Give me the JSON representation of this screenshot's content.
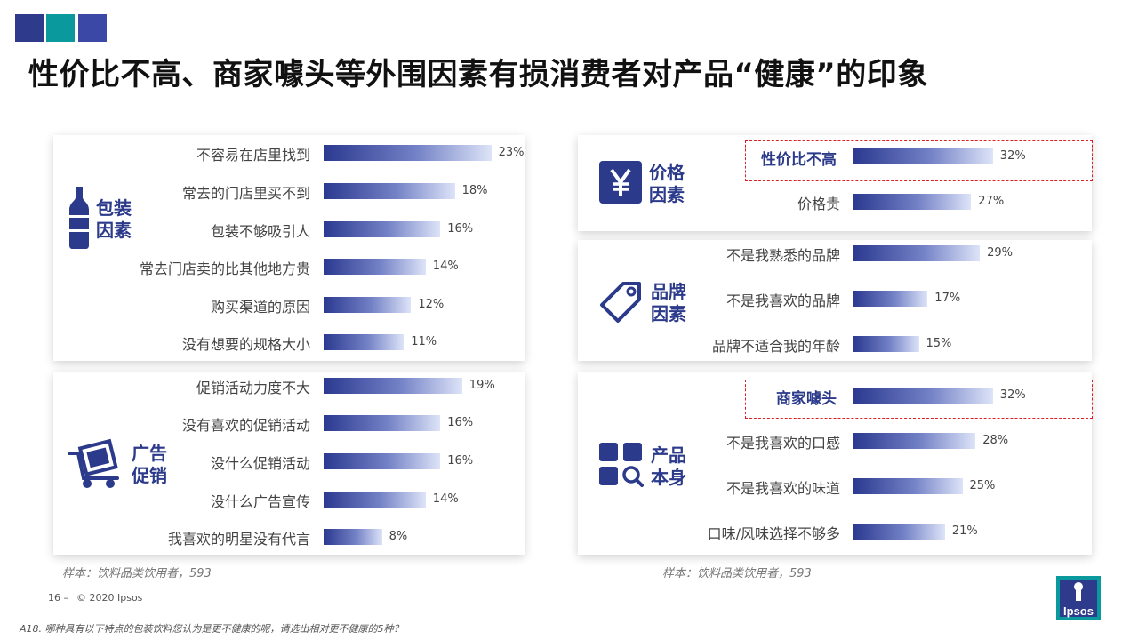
{
  "title": "性价比不高、商家噱头等外围因素有损消费者对产品“健康”的印象",
  "colors": {
    "accent": "#2b3a8a",
    "teal": "#0a9a9e",
    "highlight_border": "#d92027"
  },
  "left_sample": "样本：饮料品类饮用者，593",
  "right_sample": "样本：饮料品类饮用者，593",
  "footer": {
    "page": "16 –",
    "copyright": "© 2020 Ipsos",
    "question": "A18. 哪种具有以下特点的包装饮料您认为是更不健康的呢，请选出相对更不健康的5种？"
  },
  "logo_text": "Ipsos",
  "chart_data": [
    {
      "type": "bar",
      "group": "包装\n因素",
      "icon": "bottle-icon",
      "categories": [
        "不容易在店里找到",
        "常去的门店里买不到",
        "包装不够吸引人",
        "常去门店卖的比其他地方贵",
        "购买渠道的原因",
        "没有想要的规格大小"
      ],
      "values": [
        23,
        18,
        16,
        14,
        12,
        11
      ],
      "labels": [
        "23%",
        "18%",
        "16%",
        "14%",
        "12%",
        "11%"
      ],
      "highlight": []
    },
    {
      "type": "bar",
      "group": "广告\n促销",
      "icon": "shopping-cart-icon",
      "categories": [
        "促销活动力度不大",
        "没有喜欢的促销活动",
        "没什么促销活动",
        "没什么广告宣传",
        "我喜欢的明星没有代言"
      ],
      "values": [
        19,
        16,
        16,
        14,
        8
      ],
      "labels": [
        "19%",
        "16%",
        "16%",
        "14%",
        "8%"
      ],
      "highlight": []
    },
    {
      "type": "bar",
      "group": "价格\n因素",
      "icon": "yen-icon",
      "categories": [
        "性价比不高",
        "价格贵"
      ],
      "values": [
        32,
        27
      ],
      "labels": [
        "32%",
        "27%"
      ],
      "highlight": [
        0
      ]
    },
    {
      "type": "bar",
      "group": "品牌\n因素",
      "icon": "price-tag-icon",
      "categories": [
        "不是我熟悉的品牌",
        "不是我喜欢的品牌",
        "品牌不适合我的年龄"
      ],
      "values": [
        29,
        17,
        15
      ],
      "labels": [
        "29%",
        "17%",
        "15%"
      ],
      "highlight": []
    },
    {
      "type": "bar",
      "group": "产品\n本身",
      "icon": "grid-search-icon",
      "categories": [
        "商家噱头",
        "不是我喜欢的口感",
        "不是我喜欢的味道",
        "口味/风味选择不够多"
      ],
      "values": [
        32,
        28,
        25,
        21
      ],
      "labels": [
        "32%",
        "28%",
        "25%",
        "21%"
      ],
      "highlight": [
        0
      ]
    }
  ]
}
